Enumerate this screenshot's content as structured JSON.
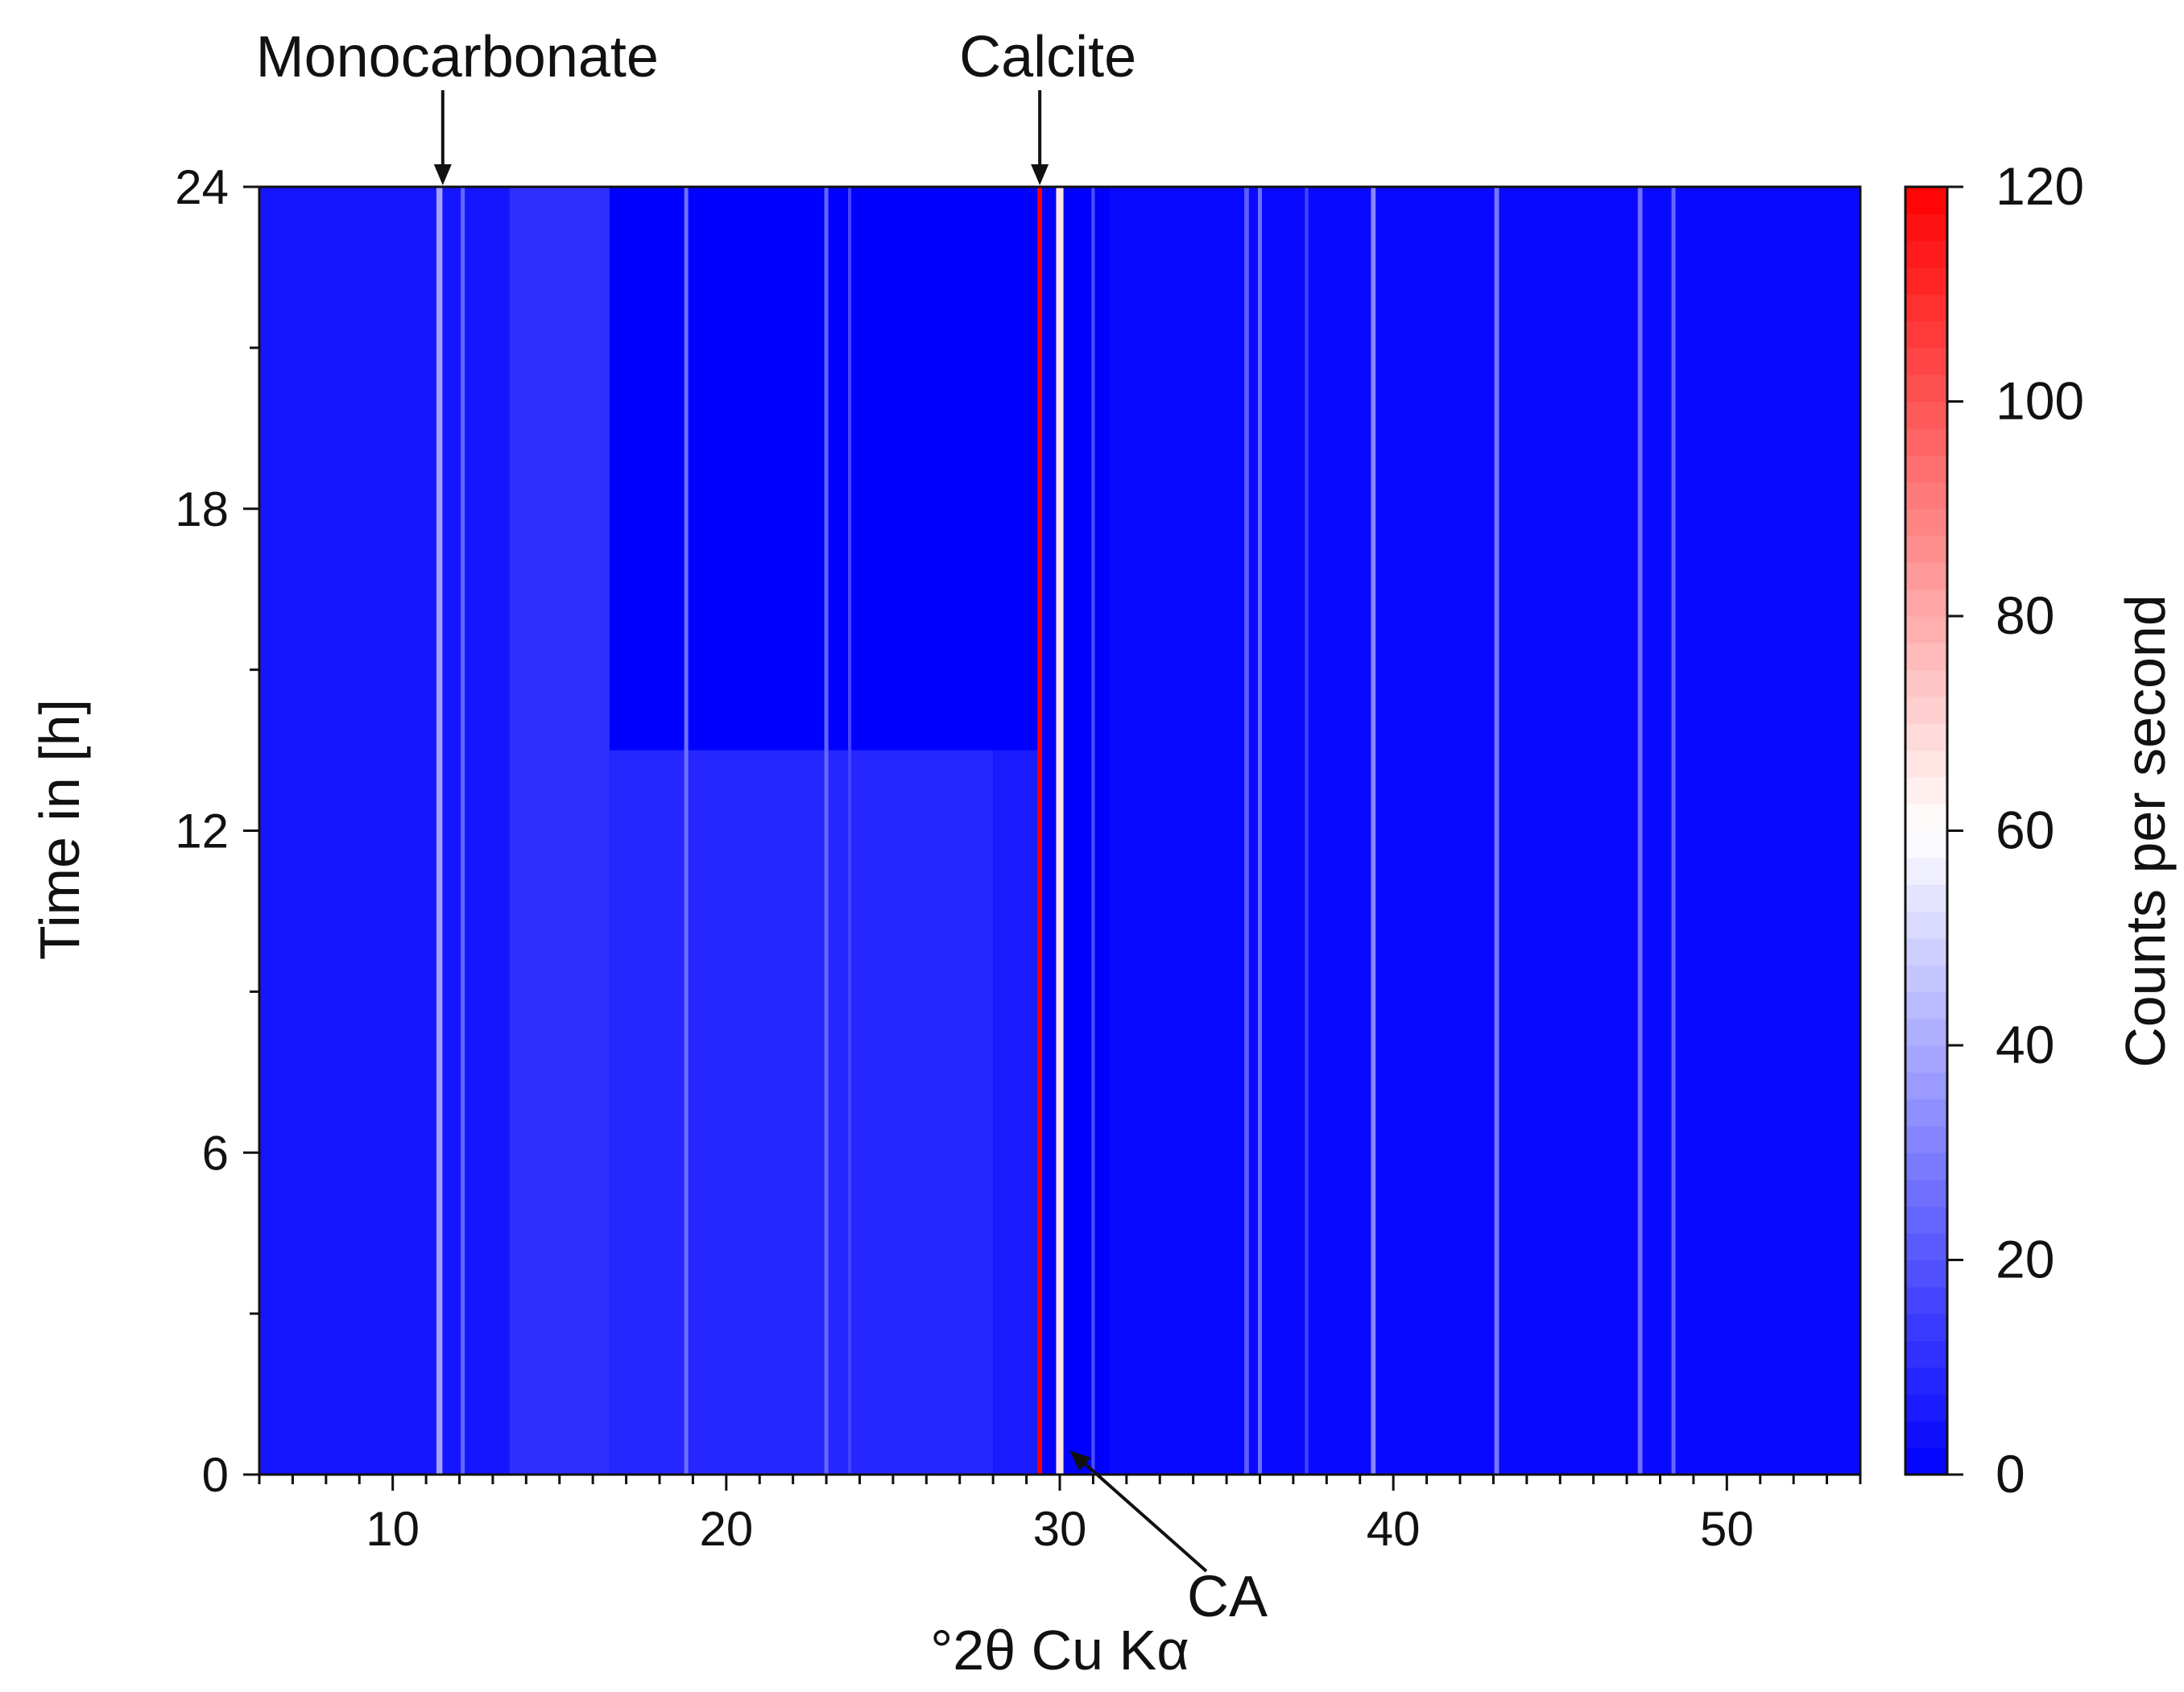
{
  "chart_data": {
    "type": "heatmap",
    "title": "",
    "xlabel": "°2θ Cu Kα",
    "ylabel": "Time in [h]",
    "colorbar_label": "Counts per second",
    "xlim": [
      6,
      54
    ],
    "ylim": [
      0,
      24
    ],
    "clim": [
      0,
      120
    ],
    "x_ticks": [
      10,
      20,
      30,
      40,
      50
    ],
    "y_ticks": [
      0,
      6,
      12,
      18,
      24
    ],
    "colorbar_ticks": [
      0,
      20,
      40,
      60,
      80,
      100,
      120
    ],
    "colormap": [
      "#0000ff",
      "#ffffff",
      "#ff0000"
    ],
    "background_regions": [
      {
        "x": [
          6.0,
          13.5
        ],
        "t_end": 24,
        "value": 5
      },
      {
        "x": [
          13.5,
          16.5
        ],
        "t_end": 24,
        "value": 11
      },
      {
        "x": [
          16.5,
          20.0
        ],
        "t_end": 13.5,
        "value": 9
      },
      {
        "x": [
          20.0,
          28.0
        ],
        "t_end": 13.5,
        "value": 9
      },
      {
        "x": [
          28.0,
          29.4
        ],
        "t_end": 13.5,
        "value": 6
      },
      {
        "x": [
          31.5,
          54.0
        ],
        "t_end": 24,
        "value": 2
      }
    ],
    "reflections": [
      {
        "x": 11.4,
        "value": 38,
        "width": 0.18,
        "t_start": 0,
        "t_end": 24,
        "label": "Monocarbonate"
      },
      {
        "x": 12.1,
        "value": 24,
        "width": 0.12,
        "t_start": 0,
        "t_end": 24
      },
      {
        "x": 18.8,
        "value": 26,
        "width": 0.12,
        "t_start": 0,
        "t_end": 24
      },
      {
        "x": 23.0,
        "value": 24,
        "width": 0.12,
        "t_start": 0,
        "t_end": 24
      },
      {
        "x": 23.7,
        "value": 16,
        "width": 0.1,
        "t_start": 0,
        "t_end": 24
      },
      {
        "x": 29.4,
        "value": 120,
        "width": 0.14,
        "t_start": 0,
        "t_end": 24,
        "label": "Calcite"
      },
      {
        "x": 30.0,
        "value": 66,
        "width": 0.22,
        "t_start": 0,
        "t_end": 24,
        "label": "CA"
      },
      {
        "x": 31.0,
        "value": 18,
        "width": 0.1,
        "t_start": 0,
        "t_end": 24
      },
      {
        "x": 35.6,
        "value": 22,
        "width": 0.14,
        "t_start": 0,
        "t_end": 24
      },
      {
        "x": 36.0,
        "value": 26,
        "width": 0.12,
        "t_start": 0,
        "t_end": 24
      },
      {
        "x": 37.4,
        "value": 16,
        "width": 0.1,
        "t_start": 0,
        "t_end": 24
      },
      {
        "x": 39.4,
        "value": 32,
        "width": 0.14,
        "t_start": 0,
        "t_end": 24
      },
      {
        "x": 43.1,
        "value": 28,
        "width": 0.14,
        "t_start": 0,
        "t_end": 24
      },
      {
        "x": 47.4,
        "value": 26,
        "width": 0.14,
        "t_start": 0,
        "t_end": 24
      },
      {
        "x": 48.4,
        "value": 24,
        "width": 0.12,
        "t_start": 0,
        "t_end": 24
      }
    ],
    "annotations": [
      {
        "text": "Monocarbonate",
        "x": 11.5,
        "y": 24,
        "arrow": "down"
      },
      {
        "text": "Calcite",
        "x": 29.4,
        "y": 24,
        "arrow": "down"
      },
      {
        "text": "CA",
        "x": 30.0,
        "y": 0,
        "arrow": "up-left"
      }
    ]
  }
}
